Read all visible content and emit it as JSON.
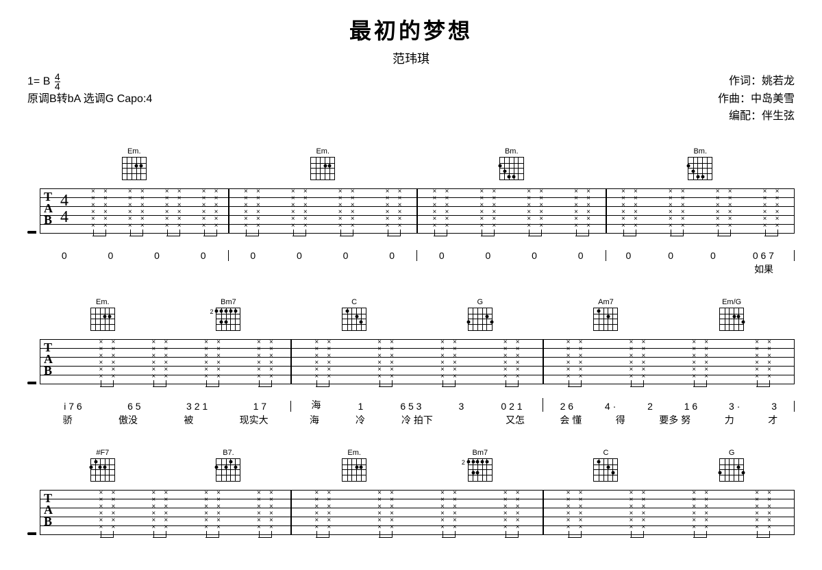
{
  "title": "最初的梦想",
  "artist": "范玮琪",
  "key_label": "1=",
  "key": "B",
  "time_num": "4",
  "time_den": "4",
  "tuning_note": "原调B转bA 选调G Capo:4",
  "credits": {
    "lyricist_label": "作词：",
    "lyricist": "姚若龙",
    "composer_label": "作曲：",
    "composer": "中岛美雪",
    "arranger_label": "编配：",
    "arranger": "伴生弦"
  },
  "tab_label": [
    "T",
    "A",
    "B"
  ],
  "systems": [
    {
      "show_tab_label": true,
      "show_timesig": true,
      "measures": [
        {
          "chords": [
            {
              "name": "Em.",
              "dots": [
                [
                  2,
                  4
                ],
                [
                  2,
                  5
                ]
              ]
            }
          ],
          "strums": 8,
          "jianpu": [
            [
              "0"
            ],
            [
              "0"
            ],
            [
              "0"
            ],
            [
              "0"
            ]
          ],
          "lyrics": [
            "",
            "",
            "",
            ""
          ]
        },
        {
          "chords": [
            {
              "name": "Em.",
              "dots": [
                [
                  2,
                  4
                ],
                [
                  2,
                  5
                ]
              ]
            }
          ],
          "strums": 8,
          "jianpu": [
            [
              "0"
            ],
            [
              "0"
            ],
            [
              "0"
            ],
            [
              "0"
            ]
          ],
          "lyrics": [
            "",
            "",
            "",
            ""
          ]
        },
        {
          "chords": [
            {
              "name": "Bm.",
              "fret": "",
              "dots": [
                [
                  2,
                  1
                ],
                [
                  3,
                  2
                ],
                [
                  4,
                  3
                ],
                [
                  4,
                  4
                ]
              ]
            }
          ],
          "strums": 8,
          "jianpu": [
            [
              "0"
            ],
            [
              "0"
            ],
            [
              "0"
            ],
            [
              "0"
            ]
          ],
          "lyrics": [
            "",
            "",
            "",
            ""
          ]
        },
        {
          "chords": [
            {
              "name": "Bm.",
              "dots": [
                [
                  2,
                  1
                ],
                [
                  3,
                  2
                ],
                [
                  4,
                  3
                ],
                [
                  4,
                  4
                ]
              ]
            }
          ],
          "strums": 8,
          "jianpu": [
            [
              "0"
            ],
            [
              "0"
            ],
            [
              "0"
            ],
            [
              "0 6 7"
            ]
          ],
          "lyrics": [
            "",
            "",
            "",
            "如果"
          ]
        }
      ]
    },
    {
      "show_tab_label": true,
      "show_timesig": false,
      "measures": [
        {
          "chords": [
            {
              "name": "Em.",
              "dots": [
                [
                  2,
                  4
                ],
                [
                  2,
                  5
                ]
              ]
            },
            {
              "name": "Bm7",
              "fret": "2",
              "dots": [
                [
                  1,
                  1
                ],
                [
                  1,
                  2
                ],
                [
                  1,
                  3
                ],
                [
                  1,
                  4
                ],
                [
                  1,
                  5
                ],
                [
                  3,
                  2
                ],
                [
                  3,
                  3
                ]
              ]
            }
          ],
          "strums": 8,
          "jianpu": [
            [
              "i̇ 7 6",
              "6 5"
            ],
            [
              "3 2 1",
              "1 7"
            ]
          ],
          "jianpu_display": [
            "i 7 6",
            "6 5",
            "3 2 1",
            "1 7"
          ],
          "lyrics": [
            "骄",
            "傲没",
            "被",
            "现实大"
          ]
        },
        {
          "chords": [
            {
              "name": "C",
              "dots": [
                [
                  1,
                  2
                ],
                [
                  2,
                  4
                ],
                [
                  3,
                  5
                ]
              ]
            },
            {
              "name": "G",
              "dots": [
                [
                  2,
                  5
                ],
                [
                  3,
                  1
                ],
                [
                  3,
                  6
                ]
              ]
            }
          ],
          "strums": 8,
          "jianpu_display": [
            "海",
            " 1",
            "6 5 3",
            "3",
            "0 2 1"
          ],
          "jp": [
            [
              "1"
            ],
            [
              "6 5 3",
              "3"
            ],
            [
              "0 2 1"
            ]
          ],
          "lyrics": [
            "海",
            "冷",
            "冷 拍下",
            "",
            "又怎"
          ]
        },
        {
          "chords": [
            {
              "name": "Am7",
              "dots": [
                [
                  1,
                  2
                ],
                [
                  2,
                  4
                ]
              ]
            },
            {
              "name": "Em/G",
              "dots": [
                [
                  2,
                  4
                ],
                [
                  2,
                  5
                ],
                [
                  3,
                  6
                ]
              ]
            }
          ],
          "strums": 8,
          "jianpu_display": [
            "2 6",
            "4 ·",
            "2",
            "1 6",
            "3 ·",
            "3"
          ],
          "lyrics": [
            "会 懂",
            "得",
            "要多 努",
            "力",
            "才"
          ]
        }
      ]
    },
    {
      "show_tab_label": true,
      "show_timesig": false,
      "measures": [
        {
          "chords": [
            {
              "name": "#F7",
              "dots": [
                [
                  1,
                  2
                ],
                [
                  2,
                  1
                ],
                [
                  2,
                  3
                ],
                [
                  2,
                  4
                ]
              ]
            },
            {
              "name": "B7.",
              "dots": [
                [
                  1,
                  4
                ],
                [
                  2,
                  1
                ],
                [
                  2,
                  3
                ],
                [
                  2,
                  5
                ]
              ]
            }
          ],
          "strums": 8,
          "lyrics": []
        },
        {
          "chords": [
            {
              "name": "Em.",
              "dots": [
                [
                  2,
                  4
                ],
                [
                  2,
                  5
                ]
              ]
            },
            {
              "name": "Bm7",
              "fret": "2",
              "dots": [
                [
                  1,
                  1
                ],
                [
                  1,
                  2
                ],
                [
                  1,
                  3
                ],
                [
                  1,
                  4
                ],
                [
                  1,
                  5
                ],
                [
                  3,
                  2
                ],
                [
                  3,
                  3
                ]
              ]
            }
          ],
          "strums": 8,
          "lyrics": []
        },
        {
          "chords": [
            {
              "name": "C",
              "dots": [
                [
                  1,
                  2
                ],
                [
                  2,
                  4
                ],
                [
                  3,
                  5
                ]
              ]
            },
            {
              "name": "G",
              "dots": [
                [
                  2,
                  5
                ],
                [
                  3,
                  1
                ],
                [
                  3,
                  6
                ]
              ]
            }
          ],
          "strums": 8,
          "lyrics": []
        }
      ]
    }
  ],
  "colors": {
    "bg": "#ffffff",
    "fg": "#000000"
  }
}
